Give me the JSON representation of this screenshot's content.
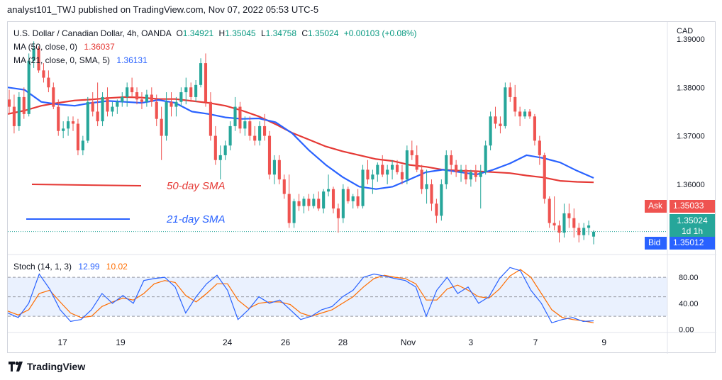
{
  "header": {
    "publisher_line": "analyst101_TWJ published on TradingView.com, Nov 07, 2022 05:53 UTC-5"
  },
  "legend": {
    "symbol": "U.S. Dollar / Canadian Dollar, 4h, OANDA",
    "o_label": "O",
    "o": "1.34921",
    "h_label": "H",
    "h": "1.35045",
    "l_label": "L",
    "l": "1.34758",
    "c_label": "C",
    "c": "1.35024",
    "chg": "+0.00103 (+0.08%)",
    "ma50_label": "MA (50, close, 0)",
    "ma50_value": "1.36037",
    "ma21_label": "MA (21, close, 0, SMA, 5)",
    "ma21_value": "1.36131",
    "stoch_label": "Stoch (14, 1, 3)",
    "stoch_k": "12.99",
    "stoch_d": "10.02"
  },
  "annotations": {
    "sma50": "50-day SMA",
    "sma21": "21-day SMA"
  },
  "price_scale": {
    "currency": "CAD",
    "ticks": [
      "1.39000",
      "1.38000",
      "1.37000",
      "1.36000"
    ],
    "ask_label": "Ask",
    "ask": "1.35033",
    "last": "1.35024",
    "countdown": "1d 1h",
    "bid_label": "Bid",
    "bid": "1.35012"
  },
  "stoch_scale": {
    "ticks": [
      "80.00",
      "40.00",
      "0.00"
    ]
  },
  "time_axis": {
    "labels": [
      "17",
      "19",
      "24",
      "26",
      "28",
      "Nov",
      "3",
      "7",
      "9"
    ]
  },
  "footer": {
    "brand": "TradingView"
  },
  "colors": {
    "up": "#26a69a",
    "down": "#ef5350",
    "ma50": "#e53935",
    "ma21": "#2962ff",
    "k": "#2962ff",
    "d": "#ff6d00",
    "ask": "#ef5350",
    "last": "#26a69a",
    "bid": "#2962ff"
  },
  "chart_data": {
    "type": "candlestick",
    "title": "U.S. Dollar / Canadian Dollar, 4h, OANDA",
    "ylim": [
      1.3455,
      1.3935
    ],
    "x_labels": [
      "17",
      "19",
      "24",
      "26",
      "28",
      "Nov",
      "3",
      "7",
      "9"
    ],
    "candles": [
      [
        1.3775,
        1.3795,
        1.3745,
        1.376
      ],
      [
        1.376,
        1.3785,
        1.3705,
        1.372
      ],
      [
        1.372,
        1.379,
        1.371,
        1.378
      ],
      [
        1.378,
        1.38,
        1.3735,
        1.3745
      ],
      [
        1.3745,
        1.387,
        1.374,
        1.3855
      ],
      [
        1.3855,
        1.3895,
        1.384,
        1.388
      ],
      [
        1.388,
        1.3885,
        1.383,
        1.3835
      ],
      [
        1.3835,
        1.385,
        1.381,
        1.382
      ],
      [
        1.382,
        1.3835,
        1.379,
        1.38
      ],
      [
        1.38,
        1.381,
        1.3755,
        1.376
      ],
      [
        1.376,
        1.3775,
        1.37,
        1.371
      ],
      [
        1.371,
        1.373,
        1.3695,
        1.3715
      ],
      [
        1.3715,
        1.374,
        1.37,
        1.373
      ],
      [
        1.373,
        1.374,
        1.371,
        1.3725
      ],
      [
        1.3725,
        1.3735,
        1.366,
        1.367
      ],
      [
        1.367,
        1.37,
        1.366,
        1.369
      ],
      [
        1.369,
        1.378,
        1.3685,
        1.377
      ],
      [
        1.377,
        1.379,
        1.374,
        1.375
      ],
      [
        1.375,
        1.381,
        1.372,
        1.373
      ],
      [
        1.373,
        1.379,
        1.372,
        1.378
      ],
      [
        1.378,
        1.38,
        1.374,
        1.375
      ],
      [
        1.375,
        1.377,
        1.374,
        1.376
      ],
      [
        1.376,
        1.3775,
        1.3745,
        1.377
      ],
      [
        1.377,
        1.379,
        1.376,
        1.378
      ],
      [
        1.378,
        1.381,
        1.376,
        1.38
      ],
      [
        1.38,
        1.382,
        1.378,
        1.379
      ],
      [
        1.379,
        1.38,
        1.3765,
        1.3775
      ],
      [
        1.3775,
        1.379,
        1.3755,
        1.377
      ],
      [
        1.377,
        1.3795,
        1.376,
        1.3785
      ],
      [
        1.3785,
        1.38,
        1.376,
        1.377
      ],
      [
        1.377,
        1.3785,
        1.372,
        1.3735
      ],
      [
        1.3735,
        1.376,
        1.365,
        1.37
      ],
      [
        1.37,
        1.379,
        1.369,
        1.377
      ],
      [
        1.377,
        1.379,
        1.374,
        1.376
      ],
      [
        1.376,
        1.378,
        1.374,
        1.377
      ],
      [
        1.377,
        1.38,
        1.376,
        1.379
      ],
      [
        1.379,
        1.382,
        1.3765,
        1.38
      ],
      [
        1.38,
        1.381,
        1.377,
        1.378
      ],
      [
        1.378,
        1.3815,
        1.377,
        1.3805
      ],
      [
        1.3805,
        1.386,
        1.38,
        1.385
      ],
      [
        1.385,
        1.387,
        1.376,
        1.377
      ],
      [
        1.377,
        1.379,
        1.369,
        1.37
      ],
      [
        1.37,
        1.372,
        1.364,
        1.365
      ],
      [
        1.365,
        1.368,
        1.361,
        1.366
      ],
      [
        1.366,
        1.369,
        1.365,
        1.368
      ],
      [
        1.368,
        1.373,
        1.367,
        1.372
      ],
      [
        1.372,
        1.378,
        1.371,
        1.376
      ],
      [
        1.376,
        1.377,
        1.3705,
        1.3715
      ],
      [
        1.3715,
        1.374,
        1.37,
        1.373
      ],
      [
        1.373,
        1.374,
        1.369,
        1.37
      ],
      [
        1.37,
        1.372,
        1.368,
        1.369
      ],
      [
        1.369,
        1.373,
        1.368,
        1.372
      ],
      [
        1.372,
        1.3745,
        1.369,
        1.37
      ],
      [
        1.37,
        1.371,
        1.361,
        1.362
      ],
      [
        1.362,
        1.366,
        1.36,
        1.365
      ],
      [
        1.365,
        1.366,
        1.36,
        1.361
      ],
      [
        1.361,
        1.362,
        1.357,
        1.358
      ],
      [
        1.358,
        1.362,
        1.351,
        1.352
      ],
      [
        1.352,
        1.357,
        1.351,
        1.3565
      ],
      [
        1.3565,
        1.358,
        1.3545,
        1.3555
      ],
      [
        1.3555,
        1.3575,
        1.354,
        1.357
      ],
      [
        1.357,
        1.358,
        1.3545,
        1.3555
      ],
      [
        1.3555,
        1.358,
        1.355,
        1.357
      ],
      [
        1.357,
        1.3585,
        1.3545,
        1.355
      ],
      [
        1.355,
        1.359,
        1.354,
        1.3585
      ],
      [
        1.3585,
        1.362,
        1.3575,
        1.359
      ],
      [
        1.359,
        1.3595,
        1.354,
        1.355
      ],
      [
        1.355,
        1.356,
        1.35,
        1.353
      ],
      [
        1.353,
        1.36,
        1.352,
        1.359
      ],
      [
        1.359,
        1.3595,
        1.356,
        1.3565
      ],
      [
        1.3565,
        1.358,
        1.355,
        1.3575
      ],
      [
        1.3575,
        1.359,
        1.355,
        1.3555
      ],
      [
        1.3555,
        1.364,
        1.355,
        1.363
      ],
      [
        1.363,
        1.365,
        1.36,
        1.361
      ],
      [
        1.361,
        1.363,
        1.358,
        1.362
      ],
      [
        1.362,
        1.3645,
        1.3605,
        1.364
      ],
      [
        1.364,
        1.366,
        1.3615,
        1.362
      ],
      [
        1.362,
        1.364,
        1.36,
        1.363
      ],
      [
        1.363,
        1.365,
        1.361,
        1.364
      ],
      [
        1.364,
        1.365,
        1.362,
        1.3625
      ],
      [
        1.3625,
        1.364,
        1.36,
        1.361
      ],
      [
        1.361,
        1.368,
        1.36,
        1.367
      ],
      [
        1.367,
        1.369,
        1.365,
        1.366
      ],
      [
        1.366,
        1.368,
        1.3625,
        1.363
      ],
      [
        1.363,
        1.364,
        1.358,
        1.359
      ],
      [
        1.359,
        1.363,
        1.356,
        1.36
      ],
      [
        1.36,
        1.361,
        1.3545,
        1.356
      ],
      [
        1.356,
        1.357,
        1.352,
        1.3535
      ],
      [
        1.3535,
        1.361,
        1.3525,
        1.36
      ],
      [
        1.36,
        1.367,
        1.359,
        1.366
      ],
      [
        1.366,
        1.367,
        1.362,
        1.364
      ],
      [
        1.364,
        1.365,
        1.3615,
        1.3625
      ],
      [
        1.3625,
        1.364,
        1.3605,
        1.363
      ],
      [
        1.363,
        1.364,
        1.36,
        1.361
      ],
      [
        1.361,
        1.363,
        1.3595,
        1.3625
      ],
      [
        1.3625,
        1.364,
        1.3605,
        1.3615
      ],
      [
        1.3615,
        1.364,
        1.355,
        1.3625
      ],
      [
        1.3625,
        1.369,
        1.362,
        1.368
      ],
      [
        1.368,
        1.375,
        1.367,
        1.374
      ],
      [
        1.374,
        1.376,
        1.3715,
        1.3725
      ],
      [
        1.3725,
        1.374,
        1.3705,
        1.372
      ],
      [
        1.372,
        1.381,
        1.3715,
        1.38
      ],
      [
        1.38,
        1.381,
        1.377,
        1.378
      ],
      [
        1.378,
        1.3805,
        1.374,
        1.375
      ],
      [
        1.375,
        1.376,
        1.372,
        1.374
      ],
      [
        1.374,
        1.3755,
        1.3735,
        1.375
      ],
      [
        1.375,
        1.3755,
        1.3735,
        1.374
      ],
      [
        1.374,
        1.3745,
        1.368,
        1.369
      ],
      [
        1.369,
        1.37,
        1.364,
        1.366
      ],
      [
        1.366,
        1.3665,
        1.356,
        1.357
      ],
      [
        1.357,
        1.3575,
        1.351,
        1.352
      ],
      [
        1.352,
        1.3575,
        1.3505,
        1.3515
      ],
      [
        1.3515,
        1.3525,
        1.348,
        1.35
      ],
      [
        1.35,
        1.356,
        1.349,
        1.354
      ],
      [
        1.354,
        1.356,
        1.351,
        1.353
      ],
      [
        1.353,
        1.355,
        1.349,
        1.351
      ],
      [
        1.351,
        1.352,
        1.348,
        1.3495
      ],
      [
        1.3495,
        1.352,
        1.3485,
        1.351
      ],
      [
        1.351,
        1.3525,
        1.3495,
        1.3515
      ],
      [
        1.3492,
        1.3505,
        1.3476,
        1.3502
      ]
    ],
    "ma50": [
      1.3745,
      1.3752,
      1.3762,
      1.3768,
      1.3773,
      1.3775,
      1.3778,
      1.378,
      1.3779,
      1.3776,
      1.3776,
      1.3772,
      1.3768,
      1.3762,
      1.3752,
      1.374,
      1.3724,
      1.3706,
      1.3692,
      1.3678,
      1.3668,
      1.366,
      1.3652,
      1.3648,
      1.364,
      1.3636,
      1.363,
      1.3628,
      1.3627,
      1.3625,
      1.3623,
      1.3618,
      1.3614,
      1.3607,
      1.3605,
      1.3604
    ],
    "ma21": [
      1.38,
      1.3795,
      1.377,
      1.3765,
      1.3762,
      1.3768,
      1.3772,
      1.377,
      1.3768,
      1.3774,
      1.3768,
      1.375,
      1.3745,
      1.3738,
      1.3735,
      1.3736,
      1.3728,
      1.3705,
      1.367,
      1.364,
      1.3615,
      1.3595,
      1.359,
      1.3595,
      1.361,
      1.3625,
      1.363,
      1.3625,
      1.362,
      1.363,
      1.3643,
      1.366,
      1.3654,
      1.3645,
      1.3628,
      1.3613
    ],
    "stoch_k": [
      25,
      18,
      40,
      85,
      62,
      30,
      12,
      15,
      30,
      55,
      40,
      52,
      40,
      75,
      78,
      80,
      65,
      25,
      50,
      70,
      83,
      60,
      15,
      30,
      50,
      40,
      45,
      30,
      15,
      20,
      30,
      35,
      50,
      60,
      80,
      85,
      82,
      78,
      75,
      65,
      20,
      60,
      80,
      55,
      65,
      40,
      50,
      78,
      95,
      90,
      60,
      40,
      10,
      15,
      18,
      12,
      13
    ],
    "stoch_d": [
      28,
      22,
      30,
      55,
      60,
      42,
      25,
      18,
      20,
      35,
      42,
      48,
      45,
      55,
      70,
      75,
      72,
      52,
      42,
      55,
      70,
      70,
      45,
      32,
      40,
      42,
      42,
      38,
      25,
      20,
      25,
      30,
      40,
      50,
      65,
      78,
      83,
      80,
      78,
      70,
      45,
      45,
      62,
      68,
      60,
      50,
      48,
      62,
      82,
      92,
      80,
      55,
      30,
      18,
      15,
      13,
      10
    ],
    "stoch_bands": [
      80,
      50,
      20
    ],
    "stoch_ylim": [
      -5,
      115
    ],
    "reference_lines": [
      {
        "label": "50-day SMA",
        "color": "#e53935"
      },
      {
        "label": "21-day SMA",
        "color": "#2962ff"
      }
    ],
    "last_price": 1.35024
  }
}
